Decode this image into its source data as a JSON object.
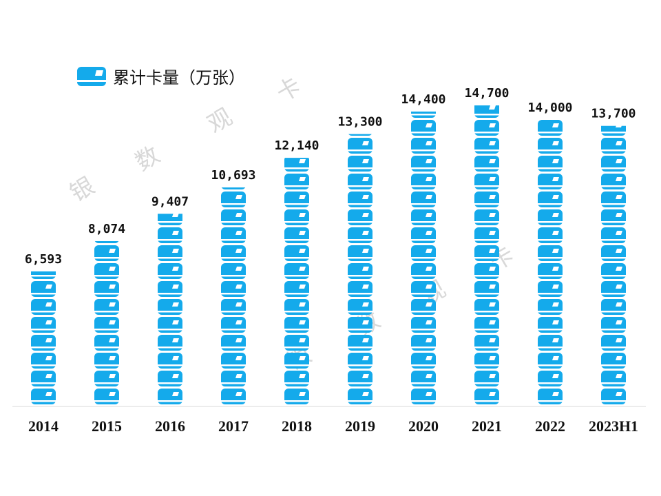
{
  "chart_data": {
    "type": "bar",
    "style": "pictograph-card-icons",
    "categories": [
      "2014",
      "2015",
      "2016",
      "2017",
      "2018",
      "2019",
      "2020",
      "2021",
      "2022",
      "2023H1"
    ],
    "series": [
      {
        "name": "累计卡量（万张）",
        "values": [
          6593,
          8074,
          9407,
          10693,
          12140,
          13300,
          14400,
          14700,
          14000,
          13700
        ]
      }
    ],
    "value_labels": [
      "6,593",
      "8,074",
      "9,407",
      "10,693",
      "12,140",
      "13,300",
      "14,400",
      "14,700",
      "14,000",
      "13,700"
    ],
    "legend": {
      "label": "累计卡量（万张）",
      "placement": "top-left",
      "icon": "bank-card-icon"
    },
    "ylim": [
      0,
      20000
    ],
    "grid": false,
    "y_axis_visible": false,
    "colors": {
      "bar": "#14AAEB",
      "axis": "#d9d9d9",
      "watermark": "#d8d8d8"
    }
  },
  "watermark": [
    "银",
    "数",
    "观",
    "卡"
  ]
}
